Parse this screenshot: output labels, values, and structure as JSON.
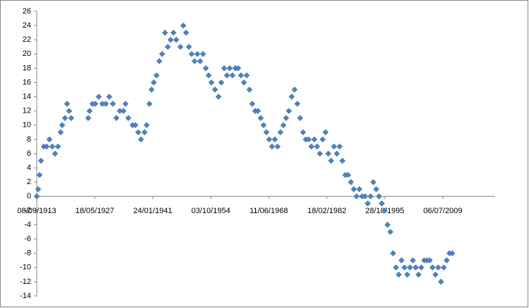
{
  "chart_data": {
    "type": "scatter",
    "color": "#4f81bd",
    "x": [
      5000,
      5120,
      5240,
      5360,
      5610,
      5850,
      6090,
      6340,
      6580,
      6820,
      7060,
      7190,
      7430,
      7610,
      7790,
      7970,
      9430,
      9550,
      9800,
      10040,
      10340,
      10650,
      10950,
      11250,
      11560,
      11860,
      12160,
      12470,
      12650,
      12890,
      13260,
      13500,
      13740,
      13980,
      14290,
      14470,
      14710,
      14890,
      15080,
      15320,
      15560,
      15800,
      16050,
      16290,
      16530,
      16780,
      17020,
      17380,
      17630,
      17870,
      18110,
      18350,
      18600,
      18840,
      19080,
      19330,
      19570,
      19810,
      20050,
      20360,
      20660,
      20900,
      21150,
      21390,
      21630,
      21870,
      22120,
      22360,
      22600,
      22850,
      23090,
      23330,
      23570,
      23820,
      24060,
      24300,
      24550,
      24790,
      25030,
      25270,
      25520,
      25760,
      26000,
      26250,
      26490,
      26730,
      26970,
      27220,
      27460,
      27700,
      27950,
      28190,
      28430,
      28670,
      28920,
      29160,
      29400,
      29640,
      29890,
      30130,
      30370,
      30620,
      30860,
      31100,
      31340,
      31590,
      31830,
      32070,
      32320,
      32560,
      32800,
      33040,
      33290,
      33530,
      33770,
      34010,
      34260,
      34500,
      34740,
      34990,
      35230,
      35470,
      35710,
      35960,
      36200,
      36440,
      36690,
      36930,
      37170,
      37410,
      37660,
      37900,
      38140,
      38390,
      38630,
      38870,
      39110,
      39360,
      39600,
      39840,
      40080,
      40330,
      40570,
      40810
    ],
    "values": [
      0,
      1,
      3,
      5,
      7,
      7,
      8,
      7,
      6,
      7,
      9,
      10,
      11,
      13,
      12,
      11,
      11,
      12,
      13,
      13,
      14,
      13,
      13,
      14,
      13,
      11,
      12,
      12,
      13,
      11,
      10,
      10,
      9,
      8,
      9,
      10,
      13,
      15,
      16,
      17,
      19,
      20,
      23,
      21,
      22,
      23,
      22,
      21,
      24,
      23,
      21,
      20,
      19,
      20,
      19,
      20,
      18,
      17,
      16,
      15,
      14,
      16,
      18,
      17,
      18,
      17,
      18,
      18,
      17,
      16,
      17,
      15,
      13,
      12,
      12,
      11,
      10,
      9,
      8,
      7,
      8,
      7,
      9,
      10,
      11,
      12,
      14,
      15,
      13,
      11,
      9,
      8,
      8,
      7,
      8,
      7,
      6,
      8,
      9,
      6,
      5,
      7,
      6,
      7,
      5,
      3,
      3,
      2,
      1,
      0,
      1,
      0,
      0,
      -1,
      0,
      2,
      1,
      0,
      -1,
      -2,
      -4,
      -5,
      -8,
      -10,
      -11,
      -9,
      -10,
      -11,
      -10,
      -9,
      -10,
      -11,
      -10,
      -9,
      -9,
      -9,
      -10,
      -11,
      -10,
      -12,
      -10,
      -9,
      -8,
      -8
    ],
    "xlim": [
      5000,
      44500
    ],
    "xticks": [
      {
        "value": 5000,
        "label": "08/09/1913"
      },
      {
        "value": 10000,
        "label": "18/05/1927"
      },
      {
        "value": 15000,
        "label": "24/01/1941"
      },
      {
        "value": 20000,
        "label": "03/10/1954"
      },
      {
        "value": 25000,
        "label": "11/06/1968"
      },
      {
        "value": 30000,
        "label": "18/02/1982"
      },
      {
        "value": 35000,
        "label": "28/10/1995"
      },
      {
        "value": 40000,
        "label": "06/07/2009"
      }
    ],
    "ylim": [
      -14,
      26
    ],
    "yticks": [
      -14,
      -12,
      -10,
      -8,
      -6,
      -4,
      -2,
      0,
      2,
      4,
      6,
      8,
      10,
      12,
      14,
      16,
      18,
      20,
      22,
      24,
      26
    ]
  }
}
